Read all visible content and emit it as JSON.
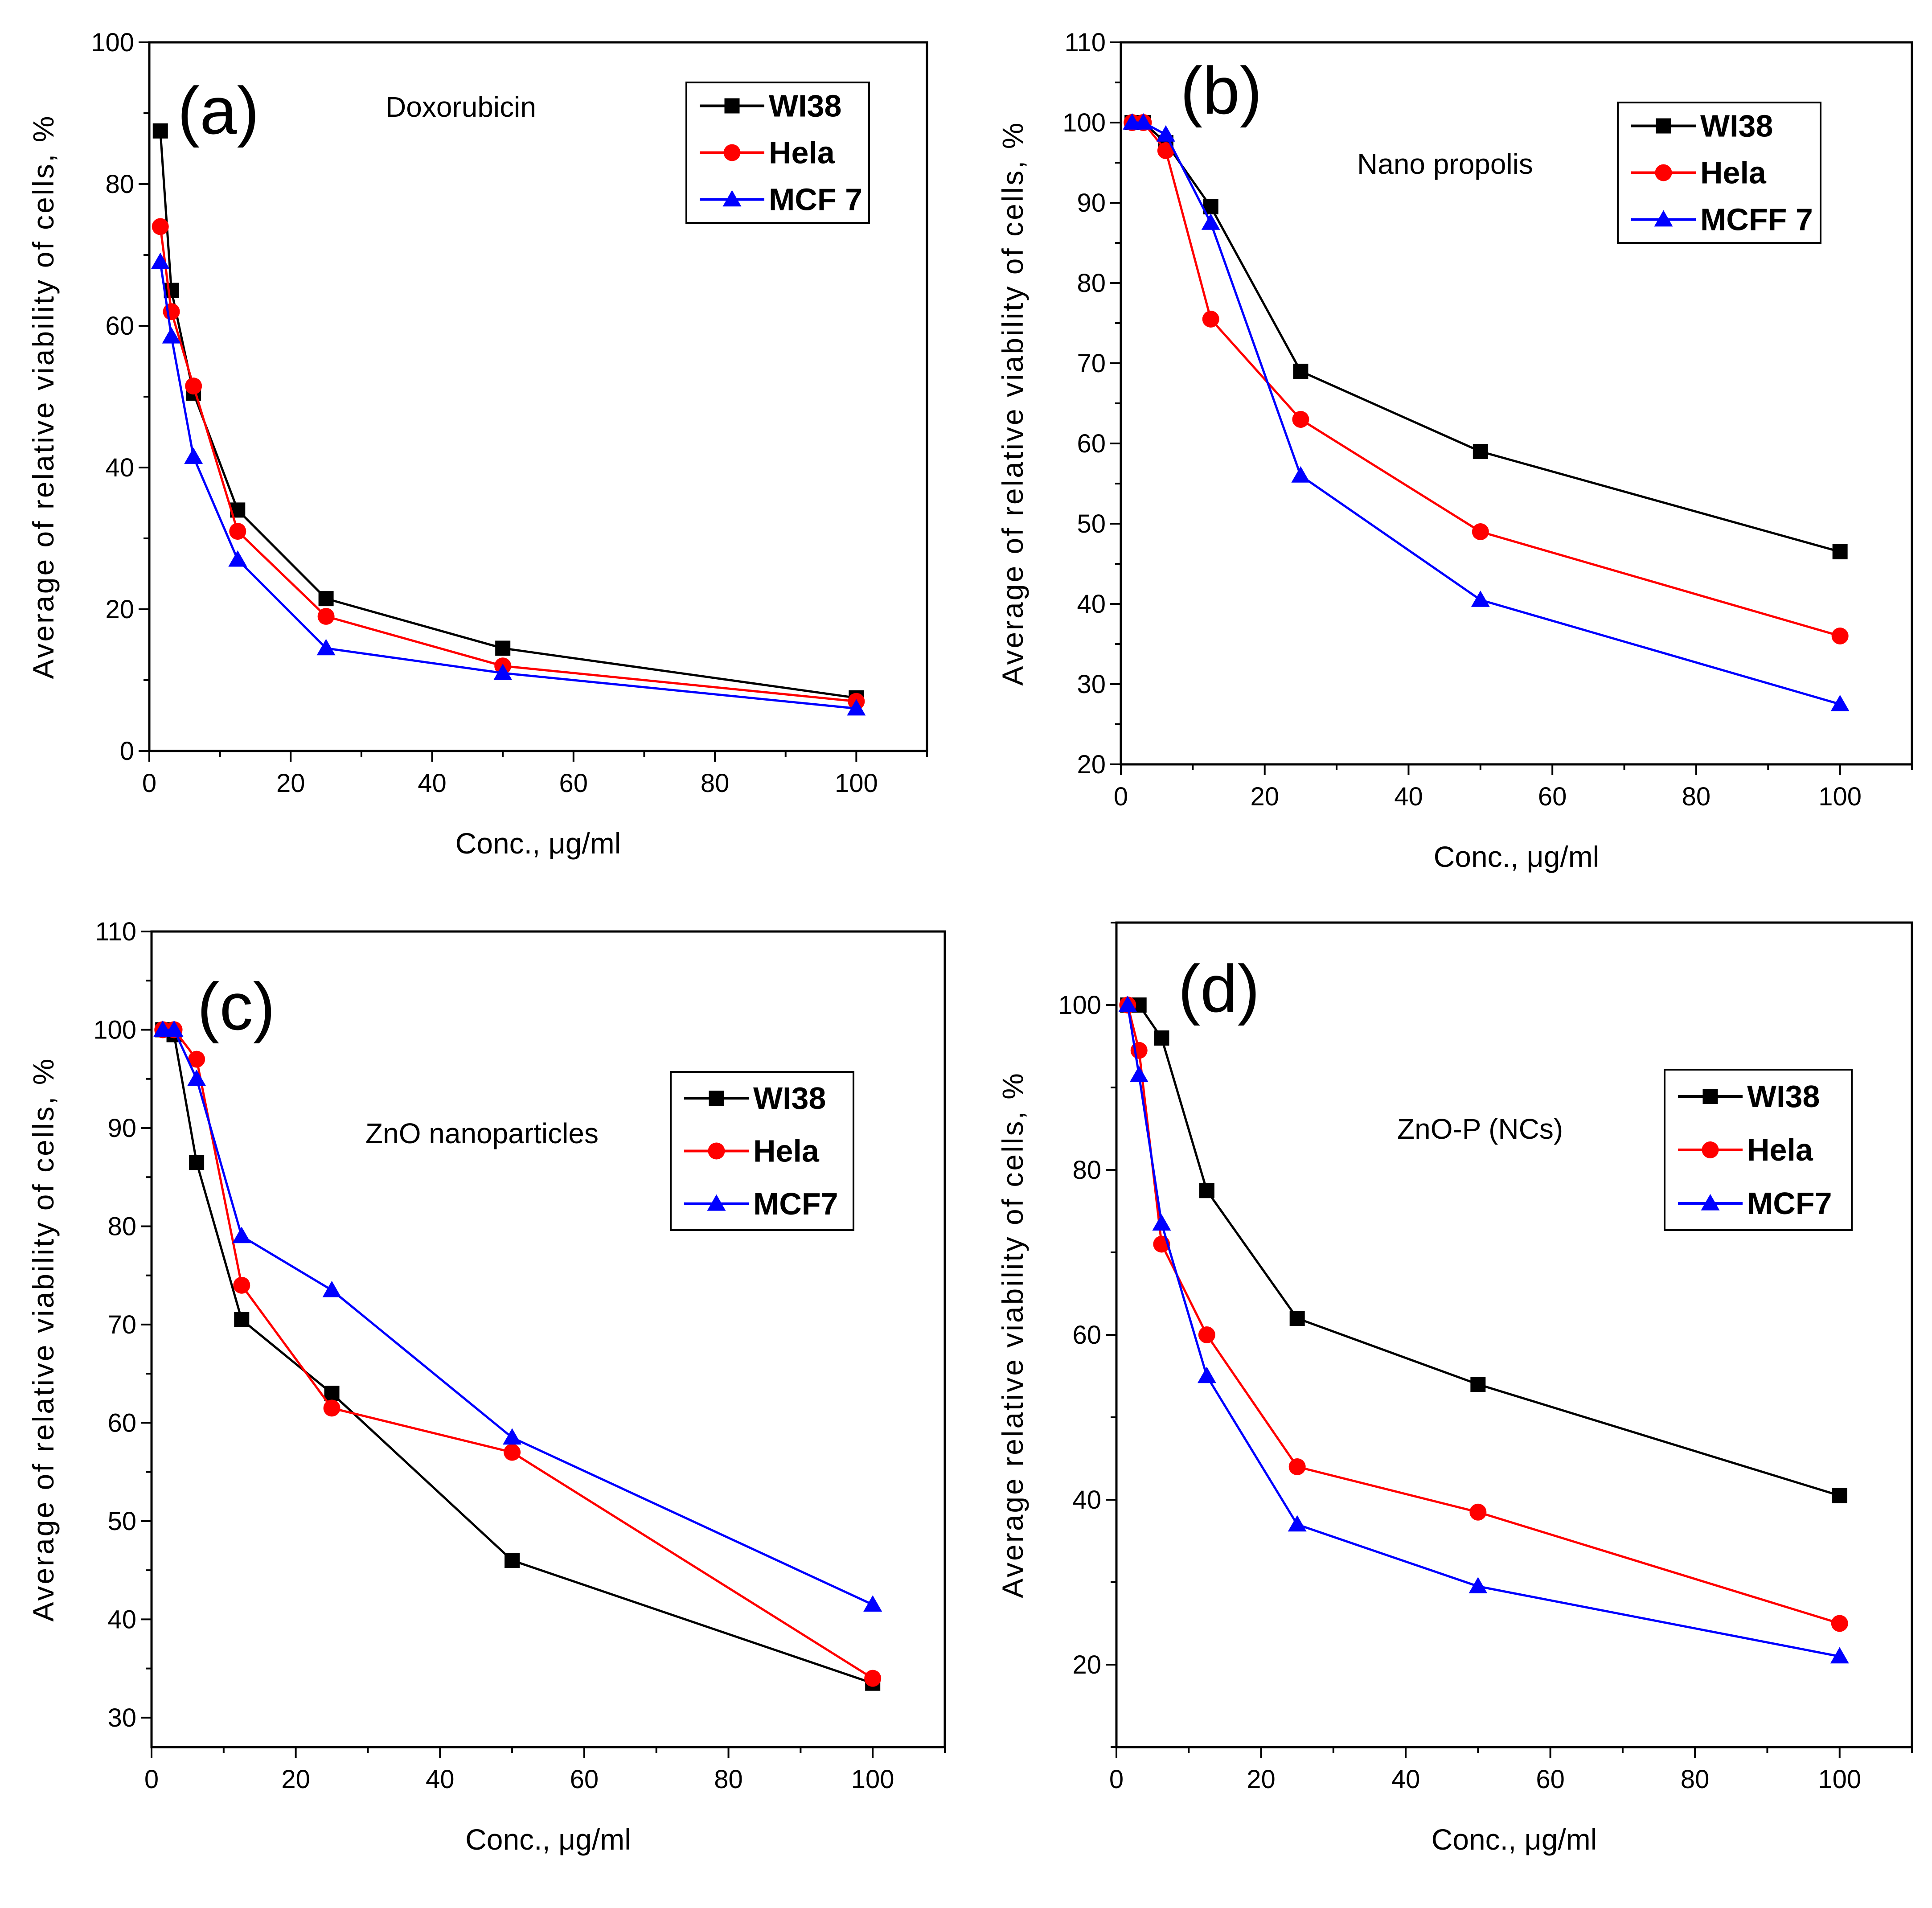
{
  "chart_data": [
    {
      "type": "line",
      "panel": "(a)",
      "title": "Doxorubicin",
      "xlabel": "Conc., μg/ml",
      "ylabel": "Average of relative viability of cells, %",
      "xlim": [
        0,
        110
      ],
      "ylim": [
        0,
        100
      ],
      "xticks": [
        0,
        20,
        40,
        60,
        80,
        100
      ],
      "yticks": [
        0,
        20,
        40,
        60,
        80,
        100
      ],
      "legend_position": "top-right",
      "series": [
        {
          "name": "WI38",
          "color": "#000000",
          "marker": "square",
          "x": [
            1.56,
            3.125,
            6.25,
            12.5,
            25,
            50,
            100
          ],
          "y": [
            87.5,
            65,
            50.5,
            34,
            21.5,
            14.5,
            7.5
          ]
        },
        {
          "name": "Hela",
          "color": "#ff0000",
          "marker": "circle",
          "x": [
            1.56,
            3.125,
            6.25,
            12.5,
            25,
            50,
            100
          ],
          "y": [
            74,
            62,
            51.5,
            31,
            19,
            12,
            7
          ]
        },
        {
          "name": "MCF 7",
          "color": "#0000ff",
          "marker": "triangle",
          "x": [
            1.56,
            3.125,
            6.25,
            12.5,
            25,
            50,
            100
          ],
          "y": [
            69,
            58.5,
            41.5,
            27,
            14.5,
            11,
            6
          ]
        }
      ]
    },
    {
      "type": "line",
      "panel": "(b)",
      "title": "Nano propolis",
      "xlabel": "Conc., μg/ml",
      "ylabel": "Average of relative viability of cells, %",
      "xlim": [
        0,
        110
      ],
      "ylim": [
        20,
        110
      ],
      "xticks": [
        0,
        20,
        40,
        60,
        80,
        100
      ],
      "yticks": [
        20,
        30,
        40,
        50,
        60,
        70,
        80,
        90,
        100,
        110
      ],
      "legend_position": "top-right",
      "series": [
        {
          "name": "WI38",
          "color": "#000000",
          "marker": "square",
          "x": [
            1.56,
            3.125,
            6.25,
            12.5,
            25,
            50,
            100
          ],
          "y": [
            100,
            100,
            97.5,
            89.5,
            69,
            59,
            46.5
          ]
        },
        {
          "name": "Hela",
          "color": "#ff0000",
          "marker": "circle",
          "x": [
            1.56,
            3.125,
            6.25,
            12.5,
            25,
            50,
            100
          ],
          "y": [
            100,
            100,
            96.5,
            75.5,
            63,
            49,
            36
          ]
        },
        {
          "name": "MCFF 7",
          "color": "#0000ff",
          "marker": "triangle",
          "x": [
            1.56,
            3.125,
            6.25,
            12.5,
            25,
            50,
            100
          ],
          "y": [
            100,
            100,
            98.5,
            87.5,
            56,
            40.5,
            27.5
          ]
        }
      ]
    },
    {
      "type": "line",
      "panel": "(c)",
      "title": "ZnO nanoparticles",
      "xlabel": "Conc., μg/ml",
      "ylabel": "Average of relative viability of cells, %",
      "xlim": [
        0,
        110
      ],
      "ylim": [
        27,
        110
      ],
      "xticks": [
        0,
        20,
        40,
        60,
        80,
        100
      ],
      "yticks": [
        30,
        40,
        50,
        60,
        70,
        80,
        90,
        100,
        110
      ],
      "legend_position": "top-right",
      "series": [
        {
          "name": "WI38",
          "color": "#000000",
          "marker": "square",
          "x": [
            1.56,
            3.125,
            6.25,
            12.5,
            25,
            50,
            100
          ],
          "y": [
            100,
            99.5,
            86.5,
            70.5,
            63,
            46,
            33.5
          ]
        },
        {
          "name": "Hela",
          "color": "#ff0000",
          "marker": "circle",
          "x": [
            1.56,
            3.125,
            6.25,
            12.5,
            25,
            50,
            100
          ],
          "y": [
            100,
            100,
            97,
            74,
            61.5,
            57,
            34
          ]
        },
        {
          "name": "MCF7",
          "color": "#0000ff",
          "marker": "triangle",
          "x": [
            1.56,
            3.125,
            6.25,
            12.5,
            25,
            50,
            100
          ],
          "y": [
            100,
            100,
            95,
            79,
            73.5,
            58.5,
            41.5
          ]
        }
      ]
    },
    {
      "type": "line",
      "panel": "(d)",
      "title": "ZnO-P (NCs)",
      "xlabel": "Conc., μg/ml",
      "ylabel": "Average relative viability of cells, %",
      "xlim": [
        0,
        110
      ],
      "ylim": [
        10,
        110
      ],
      "xticks": [
        0,
        20,
        40,
        60,
        80,
        100
      ],
      "yticks": [
        20,
        40,
        60,
        80,
        100
      ],
      "legend_position": "top-right",
      "series": [
        {
          "name": "WI38",
          "color": "#000000",
          "marker": "square",
          "x": [
            1.56,
            3.125,
            6.25,
            12.5,
            25,
            50,
            100
          ],
          "y": [
            100,
            100,
            96,
            77.5,
            62,
            54,
            40.5
          ]
        },
        {
          "name": "Hela",
          "color": "#ff0000",
          "marker": "circle",
          "x": [
            1.56,
            3.125,
            6.25,
            12.5,
            25,
            50,
            100
          ],
          "y": [
            100,
            94.5,
            71,
            60,
            44,
            38.5,
            25
          ]
        },
        {
          "name": "MCF7",
          "color": "#0000ff",
          "marker": "triangle",
          "x": [
            1.56,
            3.125,
            6.25,
            12.5,
            25,
            50,
            100
          ],
          "y": [
            100,
            91.5,
            73.5,
            55,
            37,
            29.5,
            21
          ]
        }
      ]
    }
  ]
}
